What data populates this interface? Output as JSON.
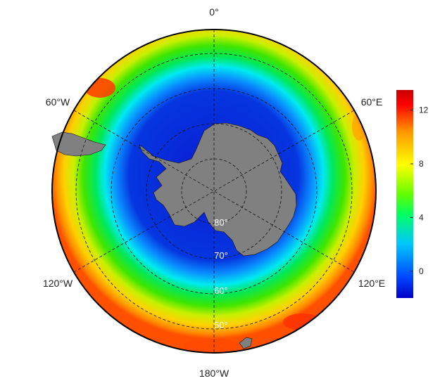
{
  "map": {
    "projection": "south-polar-stereographic",
    "land_color": "#808080",
    "ocean_colormap": "jet",
    "graticule_style": "dashed",
    "longitude_labels": [
      {
        "text": "0°",
        "lon": 0
      },
      {
        "text": "60°E",
        "lon": 60
      },
      {
        "text": "120°E",
        "lon": 120
      },
      {
        "text": "180°W",
        "lon": 180
      },
      {
        "text": "120°W",
        "lon": -120
      },
      {
        "text": "60°W",
        "lon": -60
      }
    ],
    "latitude_labels": [
      {
        "text": "80°",
        "lat": -80
      },
      {
        "text": "70°",
        "lat": -70
      },
      {
        "text": "60°",
        "lat": -60
      },
      {
        "text": "50°",
        "lat": -50
      }
    ]
  },
  "colorbar": {
    "min": -2,
    "max": 13.5,
    "colors": [
      "#0000c8",
      "#0046ff",
      "#00c8ff",
      "#00ff64",
      "#64ff00",
      "#ffff00",
      "#ff9600",
      "#ff0000",
      "#c80000"
    ],
    "ticks": [
      {
        "value": 0,
        "label": "0"
      },
      {
        "value": 4,
        "label": "4"
      },
      {
        "value": 8,
        "label": "8"
      },
      {
        "value": 12,
        "label": "12"
      }
    ]
  }
}
